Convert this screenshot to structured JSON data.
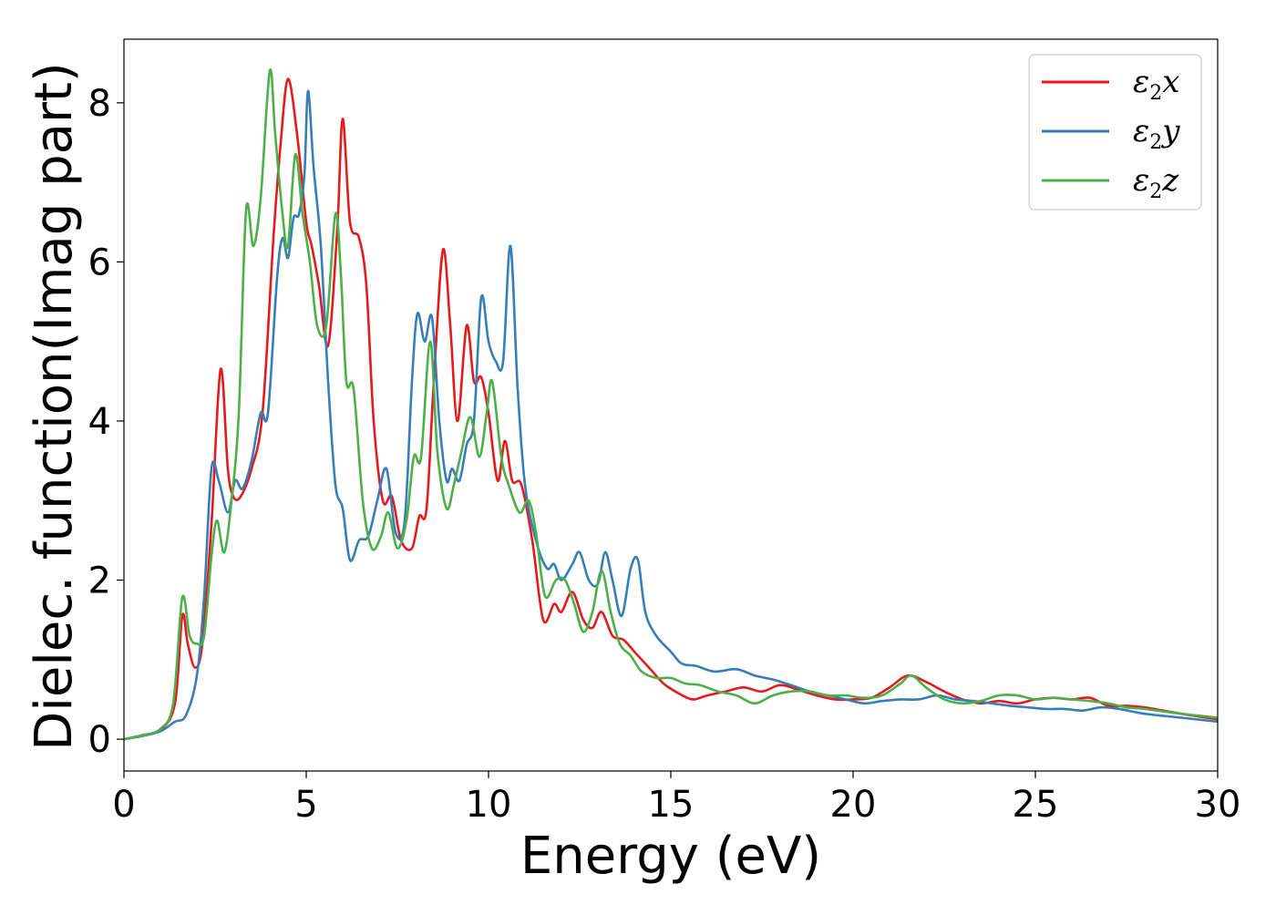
{
  "chart_data": {
    "type": "line",
    "title": "",
    "xlabel": "Energy (eV)",
    "ylabel": "Dielec. function(Imag part)",
    "xlim": [
      0,
      30
    ],
    "ylim": [
      -0.4,
      8.8
    ],
    "xticks": [
      0,
      5,
      10,
      15,
      20,
      25,
      30
    ],
    "yticks": [
      0,
      2,
      4,
      6,
      8
    ],
    "grid": false,
    "legend_position": "top-right",
    "series": [
      {
        "name": "ε2x",
        "legend_base": "ε",
        "legend_sub": "2",
        "legend_suffix": "x",
        "color": "#e41a1c",
        "points": [
          [
            0,
            0
          ],
          [
            0.5,
            0.05
          ],
          [
            1.0,
            0.12
          ],
          [
            1.4,
            0.45
          ],
          [
            1.6,
            1.55
          ],
          [
            1.75,
            1.2
          ],
          [
            1.95,
            0.9
          ],
          [
            2.15,
            1.2
          ],
          [
            2.4,
            2.7
          ],
          [
            2.65,
            4.65
          ],
          [
            2.85,
            3.4
          ],
          [
            3.0,
            3.05
          ],
          [
            3.2,
            3.05
          ],
          [
            3.5,
            3.4
          ],
          [
            3.8,
            4.1
          ],
          [
            4.1,
            6.3
          ],
          [
            4.3,
            7.5
          ],
          [
            4.5,
            8.3
          ],
          [
            4.75,
            7.6
          ],
          [
            5.0,
            6.5
          ],
          [
            5.15,
            6.2
          ],
          [
            5.35,
            5.7
          ],
          [
            5.6,
            4.95
          ],
          [
            5.85,
            6.4
          ],
          [
            6.0,
            7.8
          ],
          [
            6.2,
            6.5
          ],
          [
            6.45,
            6.3
          ],
          [
            6.65,
            5.7
          ],
          [
            6.85,
            4.0
          ],
          [
            7.1,
            3.0
          ],
          [
            7.35,
            3.05
          ],
          [
            7.6,
            2.5
          ],
          [
            7.9,
            2.4
          ],
          [
            8.1,
            2.8
          ],
          [
            8.3,
            2.9
          ],
          [
            8.5,
            4.5
          ],
          [
            8.75,
            6.15
          ],
          [
            8.95,
            5.2
          ],
          [
            9.15,
            4.0
          ],
          [
            9.4,
            5.2
          ],
          [
            9.6,
            4.5
          ],
          [
            9.8,
            4.55
          ],
          [
            10.0,
            4.1
          ],
          [
            10.25,
            3.25
          ],
          [
            10.45,
            3.75
          ],
          [
            10.65,
            3.25
          ],
          [
            10.9,
            3.2
          ],
          [
            11.2,
            2.5
          ],
          [
            11.5,
            1.5
          ],
          [
            11.8,
            1.7
          ],
          [
            12.0,
            1.6
          ],
          [
            12.3,
            1.85
          ],
          [
            12.6,
            1.5
          ],
          [
            12.85,
            1.4
          ],
          [
            13.1,
            1.6
          ],
          [
            13.4,
            1.3
          ],
          [
            13.7,
            1.25
          ],
          [
            14.0,
            1.1
          ],
          [
            14.4,
            0.9
          ],
          [
            14.8,
            0.7
          ],
          [
            15.2,
            0.58
          ],
          [
            15.6,
            0.5
          ],
          [
            16.0,
            0.55
          ],
          [
            16.5,
            0.6
          ],
          [
            17.0,
            0.65
          ],
          [
            17.5,
            0.6
          ],
          [
            18.0,
            0.68
          ],
          [
            18.5,
            0.62
          ],
          [
            19.0,
            0.55
          ],
          [
            19.5,
            0.5
          ],
          [
            20.0,
            0.5
          ],
          [
            20.5,
            0.52
          ],
          [
            21.0,
            0.65
          ],
          [
            21.5,
            0.8
          ],
          [
            22.0,
            0.72
          ],
          [
            22.5,
            0.6
          ],
          [
            23.0,
            0.5
          ],
          [
            23.5,
            0.45
          ],
          [
            24.0,
            0.48
          ],
          [
            24.5,
            0.45
          ],
          [
            25.0,
            0.5
          ],
          [
            25.5,
            0.52
          ],
          [
            26.0,
            0.5
          ],
          [
            26.5,
            0.52
          ],
          [
            27.0,
            0.42
          ],
          [
            27.5,
            0.42
          ],
          [
            28.0,
            0.4
          ],
          [
            29.0,
            0.32
          ],
          [
            30.0,
            0.25
          ]
        ]
      },
      {
        "name": "ε2y",
        "legend_base": "ε",
        "legend_sub": "2",
        "legend_suffix": "y",
        "color": "#377eb8",
        "points": [
          [
            0,
            0
          ],
          [
            0.5,
            0.04
          ],
          [
            1.0,
            0.1
          ],
          [
            1.4,
            0.22
          ],
          [
            1.7,
            0.3
          ],
          [
            2.0,
            0.8
          ],
          [
            2.2,
            1.8
          ],
          [
            2.4,
            3.4
          ],
          [
            2.6,
            3.25
          ],
          [
            2.85,
            2.85
          ],
          [
            3.05,
            3.25
          ],
          [
            3.25,
            3.15
          ],
          [
            3.5,
            3.5
          ],
          [
            3.75,
            4.1
          ],
          [
            3.95,
            4.1
          ],
          [
            4.2,
            5.8
          ],
          [
            4.35,
            6.3
          ],
          [
            4.5,
            6.05
          ],
          [
            4.65,
            6.55
          ],
          [
            4.8,
            6.6
          ],
          [
            4.95,
            7.1
          ],
          [
            5.05,
            8.15
          ],
          [
            5.2,
            7.2
          ],
          [
            5.4,
            6.2
          ],
          [
            5.6,
            4.5
          ],
          [
            5.8,
            3.2
          ],
          [
            6.0,
            2.9
          ],
          [
            6.2,
            2.25
          ],
          [
            6.45,
            2.5
          ],
          [
            6.7,
            2.55
          ],
          [
            6.95,
            3.0
          ],
          [
            7.2,
            3.4
          ],
          [
            7.45,
            2.6
          ],
          [
            7.7,
            2.75
          ],
          [
            7.9,
            4.5
          ],
          [
            8.05,
            5.35
          ],
          [
            8.25,
            5.0
          ],
          [
            8.45,
            5.3
          ],
          [
            8.65,
            4.0
          ],
          [
            8.85,
            3.25
          ],
          [
            9.0,
            3.4
          ],
          [
            9.2,
            3.25
          ],
          [
            9.4,
            3.7
          ],
          [
            9.6,
            4.0
          ],
          [
            9.8,
            5.55
          ],
          [
            10.0,
            5.0
          ],
          [
            10.2,
            4.75
          ],
          [
            10.4,
            4.75
          ],
          [
            10.6,
            6.2
          ],
          [
            10.8,
            4.4
          ],
          [
            11.0,
            3.2
          ],
          [
            11.3,
            2.5
          ],
          [
            11.6,
            2.15
          ],
          [
            11.8,
            2.2
          ],
          [
            12.0,
            2.0
          ],
          [
            12.3,
            2.2
          ],
          [
            12.5,
            2.35
          ],
          [
            12.75,
            2.0
          ],
          [
            13.0,
            1.95
          ],
          [
            13.2,
            2.35
          ],
          [
            13.4,
            2.0
          ],
          [
            13.65,
            1.55
          ],
          [
            13.9,
            2.15
          ],
          [
            14.1,
            2.25
          ],
          [
            14.3,
            1.6
          ],
          [
            14.6,
            1.3
          ],
          [
            15.0,
            1.1
          ],
          [
            15.3,
            0.95
          ],
          [
            15.7,
            0.92
          ],
          [
            16.2,
            0.85
          ],
          [
            16.8,
            0.88
          ],
          [
            17.3,
            0.8
          ],
          [
            17.8,
            0.75
          ],
          [
            18.3,
            0.68
          ],
          [
            18.8,
            0.6
          ],
          [
            19.3,
            0.55
          ],
          [
            19.8,
            0.5
          ],
          [
            20.3,
            0.45
          ],
          [
            20.8,
            0.48
          ],
          [
            21.3,
            0.5
          ],
          [
            21.8,
            0.5
          ],
          [
            22.3,
            0.55
          ],
          [
            22.8,
            0.5
          ],
          [
            23.3,
            0.48
          ],
          [
            23.8,
            0.45
          ],
          [
            24.3,
            0.42
          ],
          [
            24.8,
            0.4
          ],
          [
            25.3,
            0.38
          ],
          [
            25.8,
            0.38
          ],
          [
            26.3,
            0.36
          ],
          [
            26.8,
            0.4
          ],
          [
            27.3,
            0.38
          ],
          [
            28.0,
            0.32
          ],
          [
            29.0,
            0.27
          ],
          [
            30.0,
            0.22
          ]
        ]
      },
      {
        "name": "ε2z",
        "legend_base": "ε",
        "legend_sub": "2",
        "legend_suffix": "z",
        "color": "#4daf4a",
        "points": [
          [
            0,
            0
          ],
          [
            0.5,
            0.05
          ],
          [
            1.0,
            0.13
          ],
          [
            1.35,
            0.45
          ],
          [
            1.6,
            1.78
          ],
          [
            1.8,
            1.3
          ],
          [
            2.0,
            1.2
          ],
          [
            2.2,
            1.3
          ],
          [
            2.4,
            2.3
          ],
          [
            2.55,
            2.75
          ],
          [
            2.75,
            2.35
          ],
          [
            2.95,
            3.0
          ],
          [
            3.15,
            4.1
          ],
          [
            3.35,
            6.65
          ],
          [
            3.55,
            6.2
          ],
          [
            3.75,
            6.8
          ],
          [
            4.0,
            8.4
          ],
          [
            4.15,
            7.6
          ],
          [
            4.35,
            6.6
          ],
          [
            4.5,
            6.2
          ],
          [
            4.7,
            7.35
          ],
          [
            4.9,
            6.6
          ],
          [
            5.1,
            6.0
          ],
          [
            5.3,
            5.2
          ],
          [
            5.55,
            5.2
          ],
          [
            5.8,
            6.6
          ],
          [
            5.95,
            5.85
          ],
          [
            6.1,
            4.5
          ],
          [
            6.3,
            4.4
          ],
          [
            6.55,
            3.0
          ],
          [
            6.8,
            2.4
          ],
          [
            7.05,
            2.55
          ],
          [
            7.25,
            2.85
          ],
          [
            7.5,
            2.4
          ],
          [
            7.75,
            2.75
          ],
          [
            7.95,
            3.55
          ],
          [
            8.15,
            3.55
          ],
          [
            8.4,
            5.0
          ],
          [
            8.6,
            3.6
          ],
          [
            8.85,
            2.9
          ],
          [
            9.05,
            3.2
          ],
          [
            9.25,
            3.6
          ],
          [
            9.5,
            4.05
          ],
          [
            9.75,
            3.55
          ],
          [
            9.95,
            4.1
          ],
          [
            10.1,
            4.5
          ],
          [
            10.35,
            3.55
          ],
          [
            10.55,
            3.2
          ],
          [
            10.85,
            2.85
          ],
          [
            11.1,
            3.0
          ],
          [
            11.3,
            2.6
          ],
          [
            11.55,
            1.8
          ],
          [
            11.85,
            2.0
          ],
          [
            12.1,
            2.0
          ],
          [
            12.35,
            1.7
          ],
          [
            12.6,
            1.35
          ],
          [
            12.85,
            1.6
          ],
          [
            13.1,
            2.12
          ],
          [
            13.35,
            1.6
          ],
          [
            13.6,
            1.2
          ],
          [
            13.9,
            1.05
          ],
          [
            14.2,
            0.85
          ],
          [
            14.6,
            0.77
          ],
          [
            15.0,
            0.77
          ],
          [
            15.4,
            0.7
          ],
          [
            15.8,
            0.68
          ],
          [
            16.3,
            0.6
          ],
          [
            16.8,
            0.55
          ],
          [
            17.3,
            0.45
          ],
          [
            17.8,
            0.55
          ],
          [
            18.3,
            0.6
          ],
          [
            18.8,
            0.6
          ],
          [
            19.3,
            0.55
          ],
          [
            19.8,
            0.55
          ],
          [
            20.3,
            0.52
          ],
          [
            20.8,
            0.55
          ],
          [
            21.3,
            0.7
          ],
          [
            21.6,
            0.8
          ],
          [
            22.0,
            0.65
          ],
          [
            22.5,
            0.5
          ],
          [
            23.0,
            0.45
          ],
          [
            23.5,
            0.48
          ],
          [
            24.0,
            0.55
          ],
          [
            24.5,
            0.55
          ],
          [
            25.0,
            0.5
          ],
          [
            25.5,
            0.52
          ],
          [
            26.0,
            0.5
          ],
          [
            26.5,
            0.48
          ],
          [
            27.0,
            0.45
          ],
          [
            27.5,
            0.4
          ],
          [
            28.0,
            0.38
          ],
          [
            29.0,
            0.32
          ],
          [
            30.0,
            0.27
          ]
        ]
      }
    ]
  }
}
